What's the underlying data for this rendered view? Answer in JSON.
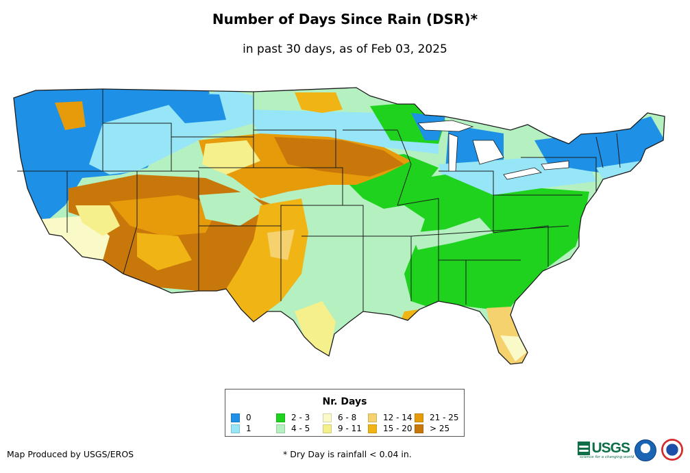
{
  "title": "Number of Days Since Rain (DSR)*",
  "subtitle": "in past 30 days, as of Feb 03, 2025",
  "legend": {
    "title": "Nr. Days",
    "items": [
      {
        "label": "0",
        "color": "#1e90e6"
      },
      {
        "label": "1",
        "color": "#96e6f7"
      },
      {
        "label": "2 - 3",
        "color": "#1ed21e"
      },
      {
        "label": "4 - 5",
        "color": "#b4f0c0"
      },
      {
        "label": "6 - 8",
        "color": "#fafac8"
      },
      {
        "label": "9 - 11",
        "color": "#f5f08c"
      },
      {
        "label": "12 - 14",
        "color": "#f5d26e"
      },
      {
        "label": "15 - 20",
        "color": "#f0b414"
      },
      {
        "label": "21 - 25",
        "color": "#e69b0a"
      },
      {
        "label": "> 25",
        "color": "#c8780a"
      }
    ]
  },
  "footer": {
    "credit": "Map Produced by USGS/EROS",
    "note": "* Dry Day is rainfall < 0.04 in."
  },
  "logos": {
    "usgs": "USGS",
    "usgs_tagline": "science for a changing world",
    "noaa": "noaa-logo",
    "nws": "nws-logo"
  }
}
